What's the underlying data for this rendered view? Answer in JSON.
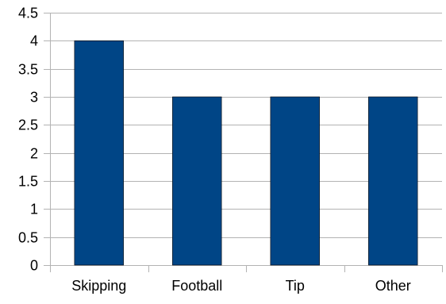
{
  "chart_data": {
    "type": "bar",
    "categories": [
      "Skipping",
      "Football",
      "Tip",
      "Other"
    ],
    "values": [
      4,
      3,
      3,
      3
    ],
    "ylim": [
      0,
      4.5
    ],
    "yticks": [
      0,
      0.5,
      1,
      1.5,
      2,
      2.5,
      3,
      3.5,
      4,
      4.5
    ],
    "grid": "horizontal",
    "bar_color": "#004586",
    "title": "",
    "xlabel": "",
    "ylabel": ""
  }
}
